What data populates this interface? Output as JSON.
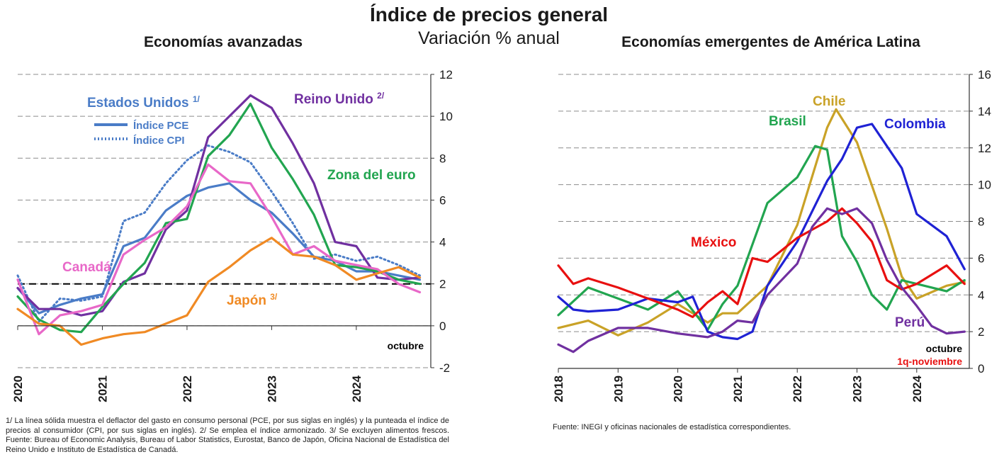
{
  "header": {
    "title": "Índice de precios general",
    "subtitle": "Variación % anual"
  },
  "chart_data": [
    {
      "type": "line",
      "title": "Economías avanzadas",
      "x_tick_labels": [
        "2020",
        "2021",
        "2022",
        "2023",
        "2024"
      ],
      "x_range": [
        2020.0,
        2024.88
      ],
      "ylim": [
        -2,
        12
      ],
      "y_ticks": [
        -2,
        0,
        2,
        4,
        6,
        8,
        10,
        12
      ],
      "y_axis_side": "right",
      "grid": "dashed horizontal",
      "reference_line": {
        "y": 2,
        "style": "dashed black"
      },
      "end_label": "octubre",
      "legend": {
        "solid": "Índice PCE",
        "dotted": "Índice CPI"
      },
      "annotations": [
        "Estados Unidos 1/",
        "Reino Unido 2/",
        "Zona del euro",
        "Canadá",
        "Japón 3/"
      ],
      "series": [
        {
          "name": "Estados Unidos - Índice PCE",
          "color": "#4a7cc7",
          "style": "solid",
          "x": [
            2020.0,
            2020.25,
            2020.5,
            2020.75,
            2021.0,
            2021.25,
            2021.5,
            2021.75,
            2022.0,
            2022.25,
            2022.5,
            2022.75,
            2023.0,
            2023.25,
            2023.5,
            2023.75,
            2024.0,
            2024.25,
            2024.5,
            2024.75
          ],
          "y": [
            1.8,
            0.6,
            1.0,
            1.3,
            1.5,
            3.8,
            4.2,
            5.5,
            6.2,
            6.6,
            6.8,
            6.0,
            5.4,
            4.4,
            3.3,
            3.1,
            2.6,
            2.6,
            2.4,
            2.2
          ]
        },
        {
          "name": "Estados Unidos - Índice CPI",
          "color": "#4a7cc7",
          "style": "dotted",
          "x": [
            2020.0,
            2020.25,
            2020.5,
            2020.75,
            2021.0,
            2021.25,
            2021.5,
            2021.75,
            2022.0,
            2022.25,
            2022.5,
            2022.75,
            2023.0,
            2023.25,
            2023.5,
            2023.75,
            2024.0,
            2024.25,
            2024.5,
            2024.75
          ],
          "y": [
            2.4,
            0.2,
            1.3,
            1.2,
            1.4,
            5.0,
            5.4,
            6.8,
            7.9,
            8.6,
            8.3,
            7.8,
            6.4,
            4.9,
            3.2,
            3.4,
            3.1,
            3.3,
            2.9,
            2.4
          ]
        },
        {
          "name": "Reino Unido",
          "color": "#7030a0",
          "style": "solid",
          "x": [
            2020.0,
            2020.25,
            2020.5,
            2020.75,
            2021.0,
            2021.25,
            2021.5,
            2021.75,
            2022.0,
            2022.25,
            2022.5,
            2022.75,
            2023.0,
            2023.25,
            2023.5,
            2023.75,
            2024.0,
            2024.25,
            2024.5,
            2024.75
          ],
          "y": [
            1.8,
            0.8,
            0.8,
            0.5,
            0.7,
            2.1,
            2.5,
            4.6,
            5.5,
            9.0,
            10.0,
            11.0,
            10.4,
            8.7,
            6.8,
            4.0,
            3.8,
            2.3,
            2.2,
            2.3
          ]
        },
        {
          "name": "Zona del euro",
          "color": "#22a550",
          "style": "solid",
          "x": [
            2020.0,
            2020.25,
            2020.5,
            2020.75,
            2021.0,
            2021.25,
            2021.5,
            2021.75,
            2022.0,
            2022.25,
            2022.5,
            2022.75,
            2023.0,
            2023.25,
            2023.5,
            2023.75,
            2024.0,
            2024.25,
            2024.5,
            2024.75
          ],
          "y": [
            1.4,
            0.3,
            -0.2,
            -0.3,
            0.9,
            2.0,
            3.0,
            4.9,
            5.1,
            8.1,
            9.1,
            10.6,
            8.5,
            7.0,
            5.3,
            2.9,
            2.8,
            2.6,
            2.2,
            2.0
          ]
        },
        {
          "name": "Canadá",
          "color": "#e868c8",
          "style": "solid",
          "x": [
            2020.0,
            2020.25,
            2020.5,
            2020.75,
            2021.0,
            2021.25,
            2021.5,
            2021.75,
            2022.0,
            2022.25,
            2022.5,
            2022.75,
            2023.0,
            2023.25,
            2023.5,
            2023.75,
            2024.0,
            2024.25,
            2024.5,
            2024.75
          ],
          "y": [
            2.2,
            -0.4,
            0.5,
            0.7,
            1.0,
            3.4,
            4.1,
            4.7,
            5.7,
            7.7,
            6.9,
            6.8,
            5.2,
            3.4,
            3.8,
            3.1,
            2.9,
            2.7,
            2.0,
            1.6
          ]
        },
        {
          "name": "Japón",
          "color": "#f08a24",
          "style": "solid",
          "x": [
            2020.0,
            2020.25,
            2020.5,
            2020.75,
            2021.0,
            2021.25,
            2021.5,
            2021.75,
            2022.0,
            2022.25,
            2022.5,
            2022.75,
            2023.0,
            2023.25,
            2023.5,
            2023.75,
            2024.0,
            2024.25,
            2024.5,
            2024.75
          ],
          "y": [
            0.8,
            0.1,
            0.0,
            -0.9,
            -0.6,
            -0.4,
            -0.3,
            0.1,
            0.5,
            2.1,
            2.8,
            3.6,
            4.2,
            3.4,
            3.3,
            2.9,
            2.2,
            2.5,
            2.8,
            2.3
          ]
        }
      ]
    },
    {
      "type": "line",
      "title": "Economías emergentes de América Latina",
      "x_tick_labels": [
        "2018",
        "2019",
        "2020",
        "2021",
        "2022",
        "2023",
        "2024"
      ],
      "x_range": [
        2018.0,
        2024.88
      ],
      "ylim": [
        0,
        16
      ],
      "y_ticks": [
        0,
        2,
        4,
        6,
        8,
        10,
        12,
        14,
        16
      ],
      "y_axis_side": "right",
      "grid": "dashed horizontal",
      "end_labels": [
        "octubre",
        "1q-noviembre"
      ],
      "annotations": [
        "Chile",
        "Brasil",
        "Colombia",
        "México",
        "Perú"
      ],
      "series": [
        {
          "name": "Chile",
          "color": "#c9a227",
          "x": [
            2018.0,
            2018.5,
            2019.0,
            2019.5,
            2020.0,
            2020.5,
            2020.75,
            2021.0,
            2021.5,
            2022.0,
            2022.5,
            2022.65,
            2023.0,
            2023.5,
            2023.75,
            2024.0,
            2024.5,
            2024.8
          ],
          "y": [
            2.2,
            2.6,
            1.8,
            2.5,
            3.5,
            2.5,
            3.0,
            3.0,
            4.5,
            7.8,
            13.1,
            14.1,
            12.3,
            7.6,
            5.0,
            3.8,
            4.5,
            4.7
          ]
        },
        {
          "name": "Brasil",
          "color": "#22a550",
          "x": [
            2018.0,
            2018.5,
            2019.0,
            2019.5,
            2020.0,
            2020.5,
            2020.75,
            2021.0,
            2021.5,
            2022.0,
            2022.3,
            2022.5,
            2022.75,
            2023.0,
            2023.25,
            2023.5,
            2023.75,
            2024.0,
            2024.5,
            2024.8
          ],
          "y": [
            2.9,
            4.4,
            3.8,
            3.2,
            4.2,
            2.1,
            3.5,
            4.5,
            9.0,
            10.4,
            12.1,
            11.9,
            7.2,
            5.8,
            4.0,
            3.2,
            4.8,
            4.6,
            4.2,
            4.8
          ]
        },
        {
          "name": "Colombia",
          "color": "#1f22d4",
          "x": [
            2018.0,
            2018.25,
            2018.5,
            2019.0,
            2019.5,
            2020.0,
            2020.25,
            2020.5,
            2020.75,
            2021.0,
            2021.25,
            2021.5,
            2022.0,
            2022.5,
            2022.75,
            2023.0,
            2023.25,
            2023.5,
            2023.75,
            2024.0,
            2024.5,
            2024.8
          ],
          "y": [
            3.9,
            3.2,
            3.1,
            3.2,
            3.8,
            3.6,
            3.9,
            2.0,
            1.7,
            1.6,
            2.0,
            4.5,
            6.9,
            10.2,
            11.4,
            13.1,
            13.3,
            12.1,
            10.9,
            8.4,
            7.2,
            5.4
          ]
        },
        {
          "name": "México",
          "color": "#e81010",
          "x": [
            2018.0,
            2018.25,
            2018.5,
            2019.0,
            2019.5,
            2020.0,
            2020.25,
            2020.5,
            2020.75,
            2021.0,
            2021.25,
            2021.5,
            2022.0,
            2022.5,
            2022.75,
            2023.0,
            2023.25,
            2023.5,
            2023.75,
            2024.0,
            2024.5,
            2024.8
          ],
          "y": [
            5.6,
            4.6,
            4.9,
            4.4,
            3.8,
            3.2,
            2.8,
            3.6,
            4.2,
            3.5,
            6.0,
            5.8,
            7.1,
            8.0,
            8.7,
            7.9,
            6.9,
            4.8,
            4.3,
            4.6,
            5.6,
            4.6
          ]
        },
        {
          "name": "Perú",
          "color": "#7030a0",
          "x": [
            2018.0,
            2018.25,
            2018.5,
            2019.0,
            2019.5,
            2020.0,
            2020.5,
            2020.75,
            2021.0,
            2021.25,
            2021.5,
            2022.0,
            2022.25,
            2022.5,
            2022.75,
            2023.0,
            2023.25,
            2023.5,
            2023.75,
            2024.0,
            2024.25,
            2024.5,
            2024.8
          ],
          "y": [
            1.3,
            0.9,
            1.5,
            2.2,
            2.2,
            1.9,
            1.7,
            2.0,
            2.6,
            2.5,
            4.0,
            5.7,
            7.7,
            8.7,
            8.4,
            8.7,
            7.9,
            5.9,
            4.4,
            3.4,
            2.3,
            1.9,
            2.0
          ]
        }
      ]
    }
  ],
  "footnotes": {
    "left": "1/ La línea sólida muestra el deflactor del gasto en consumo personal (PCE, por sus siglas en inglés) y la punteada el índice de precios al consumidor (CPI, por sus siglas en inglés). 2/ Se emplea el índice armonizado. 3/ Se excluyen alimentos frescos. Fuente: Bureau of Economic Analysis, Bureau of Labor Statistics, Eurostat, Banco de Japón, Oficina Nacional de Estadística del Reino Unido e Instituto de Estadística de Canadá.",
    "right": "Fuente: INEGI y oficinas nacionales de estadística correspondientes."
  }
}
